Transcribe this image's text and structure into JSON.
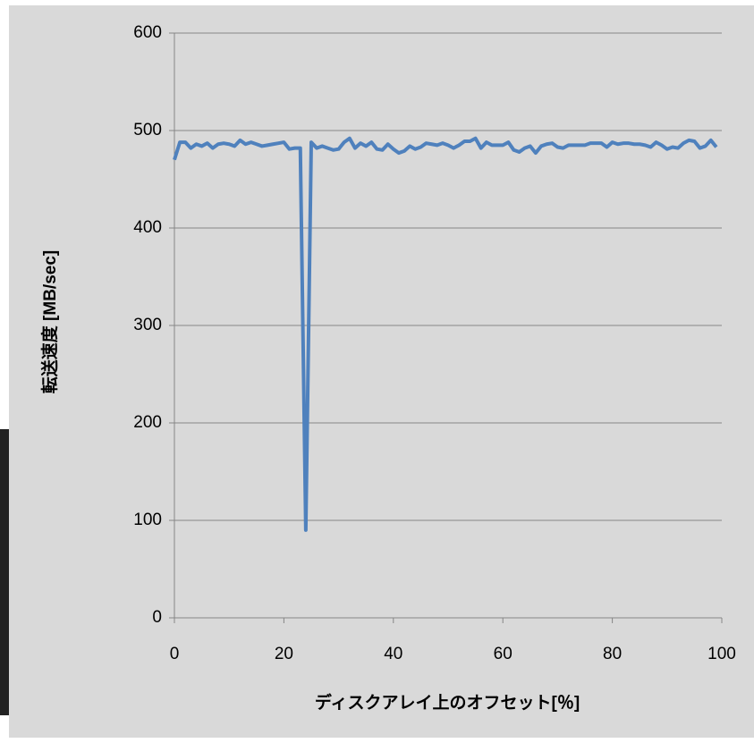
{
  "chart_data": {
    "type": "line",
    "xlabel": "ディスクアレイ上のオフセット[％]",
    "ylabel": "転送速度 [MB/sec]",
    "x": [
      0,
      1,
      2,
      3,
      4,
      5,
      6,
      7,
      8,
      9,
      10,
      11,
      12,
      13,
      14,
      15,
      16,
      17,
      18,
      19,
      20,
      21,
      22,
      23,
      24,
      25,
      26,
      27,
      28,
      29,
      30,
      31,
      32,
      33,
      34,
      35,
      36,
      37,
      38,
      39,
      40,
      41,
      42,
      43,
      44,
      45,
      46,
      47,
      48,
      49,
      50,
      51,
      52,
      53,
      54,
      55,
      56,
      57,
      58,
      59,
      60,
      61,
      62,
      63,
      64,
      65,
      66,
      67,
      68,
      69,
      70,
      71,
      72,
      73,
      74,
      75,
      76,
      77,
      78,
      79,
      80,
      81,
      82,
      83,
      84,
      85,
      86,
      87,
      88,
      89,
      90,
      91,
      92,
      93,
      94,
      95,
      96,
      97,
      98,
      99
    ],
    "series": [
      {
        "color": "#4f81bd",
        "values": [
          470,
          488,
          488,
          482,
          486,
          484,
          487,
          482,
          486,
          487,
          486,
          484,
          490,
          486,
          488,
          486,
          484,
          485,
          486,
          487,
          488,
          481,
          482,
          482,
          90,
          488,
          482,
          484,
          482,
          480,
          481,
          488,
          492,
          482,
          487,
          484,
          488,
          481,
          480,
          486,
          481,
          477,
          479,
          484,
          481,
          483,
          487,
          486,
          485,
          487,
          485,
          482,
          485,
          489,
          489,
          492,
          482,
          488,
          485,
          485,
          485,
          488,
          480,
          478,
          482,
          484,
          477,
          484,
          486,
          487,
          483,
          482,
          485,
          485,
          485,
          485,
          487,
          487,
          487,
          483,
          488,
          486,
          487,
          487,
          486,
          486,
          485,
          483,
          488,
          485,
          481,
          483,
          482,
          487,
          490,
          489,
          482,
          484,
          490,
          483
        ]
      }
    ],
    "xlim": [
      0,
      100
    ],
    "xticks": [
      0,
      20,
      40,
      60,
      80,
      100
    ],
    "ylim": [
      0,
      600
    ],
    "yticks": [
      0,
      100,
      200,
      300,
      400,
      500,
      600
    ],
    "grid": true
  }
}
